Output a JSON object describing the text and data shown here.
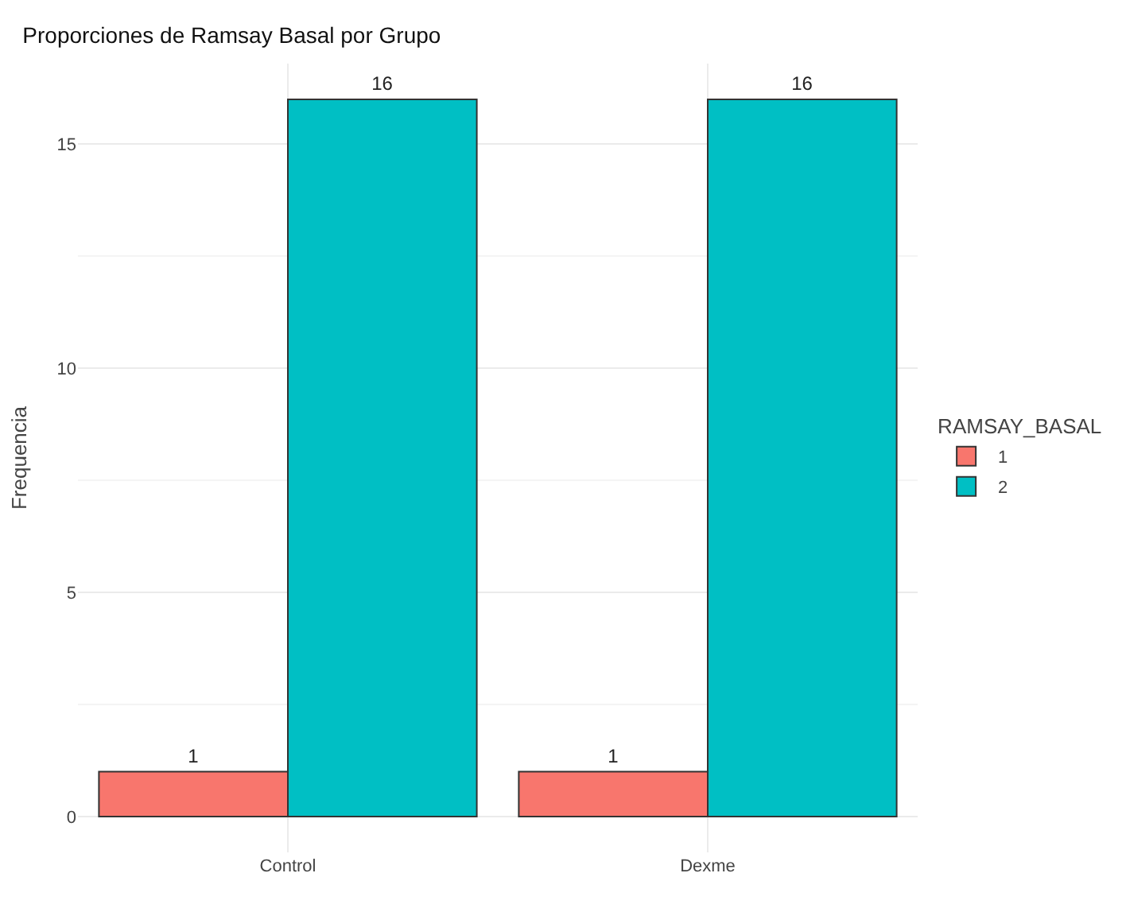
{
  "chart_data": {
    "type": "bar",
    "title": "Proporciones de Ramsay Basal por Grupo",
    "ylabel": "Frequencia",
    "legend_title": "RAMSAY_BASAL",
    "categories": [
      "Control",
      "Dexme"
    ],
    "series": [
      {
        "name": "1",
        "color": "#f8766d",
        "values": [
          1,
          1
        ]
      },
      {
        "name": "2",
        "color": "#00bfc4",
        "values": [
          16,
          16
        ]
      }
    ],
    "ylim": [
      -0.8,
      16.8
    ],
    "yticks": [
      0,
      5,
      10,
      15
    ],
    "grid": true,
    "legend": "right",
    "data_labels": true
  }
}
